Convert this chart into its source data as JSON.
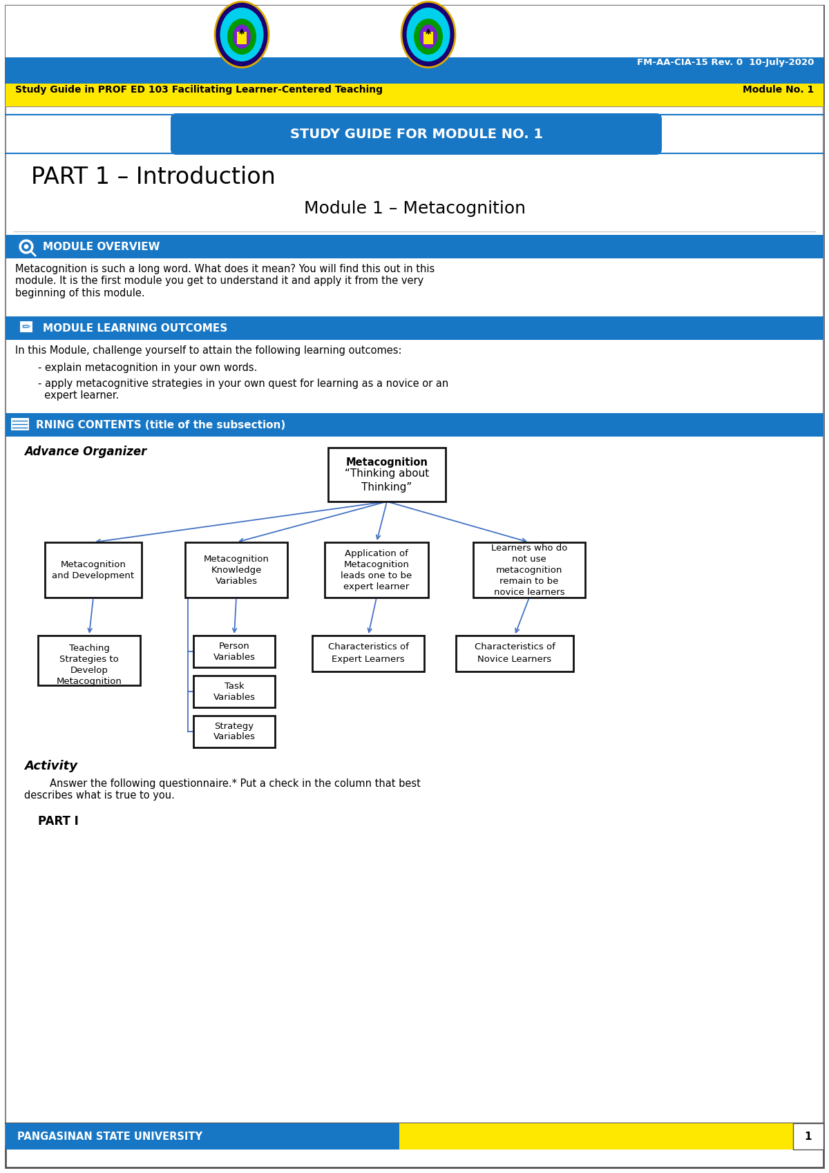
{
  "page_bg": "#ffffff",
  "header_blue_bg": "#1877C5",
  "header_yellow_bg": "#FFE800",
  "header_ref_text": "FM-AA-CIA-15 Rev. 0  10-July-2020",
  "header_study_guide": "Study Guide in PROF ED 103 Facilitating Learner-Centered Teaching",
  "header_module_no": "Module No. 1",
  "study_guide_banner_text": "STUDY GUIDE FOR MODULE NO. 1",
  "study_guide_banner_bg": "#1877C5",
  "part1_title": "PART 1 – Introduction",
  "module_title": "Module 1 – Metacognition",
  "section_blue": "#1877C5",
  "section1_title": "MODULE OVERVIEW",
  "section1_body": "Metacognition is such a long word. What does it mean? You will find this out in this\nmodule. It is the first module you get to understand it and apply it from the very\nbeginning of this module.",
  "section2_title": "MODULE LEARNING OUTCOMES",
  "section2_intro": "In this Module, challenge yourself to attain the following learning outcomes:",
  "section2_bullet1": "- explain metacognition in your own words.",
  "section2_bullet2": "- apply metacognitive strategies in your own quest for learning as a novice or an\n  expert learner.",
  "section3_title": "RNING CONTENTS (title of the subsection)",
  "advance_organizer_label": "Advance Organizer",
  "box_main_l1": "Metacognition",
  "box_main_l2": "“Thinking about",
  "box_main_l3": "Thinking”",
  "box_b1": "Metacognition\nand Development",
  "box_b2": "Metacognition\nKnowledge\nVariables",
  "box_b3": "Application of\nMetacognition\nleads one to be\nexpert learner",
  "box_b4": "Learners who do\nnot use\nmetacognition\nremain to be\nnovice learners",
  "box_c1": "Teaching\nStrategies to\nDevelop\nMetacognition",
  "box_c2a": "Person\nVariables",
  "box_c2b": "Task\nVariables",
  "box_c2c": "Strategy\nVariables",
  "box_c3": "Characteristics of\nExpert Learners",
  "box_c4": "Characteristics of\nNovice Learners",
  "activity_title": "Activity",
  "activity_body": "        Answer the following questionnaire.* Put a check in the column that best\ndescribes what is true to you.",
  "part_i_label": "PART I",
  "footer_university": "PANGASINAN STATE UNIVERSITY",
  "footer_page": "1",
  "footer_blue": "#1877C5",
  "footer_yellow": "#FFE800",
  "arrow_color": "#4472C4",
  "box_edge_color": "#222222",
  "thick_box_edge": "#111111"
}
